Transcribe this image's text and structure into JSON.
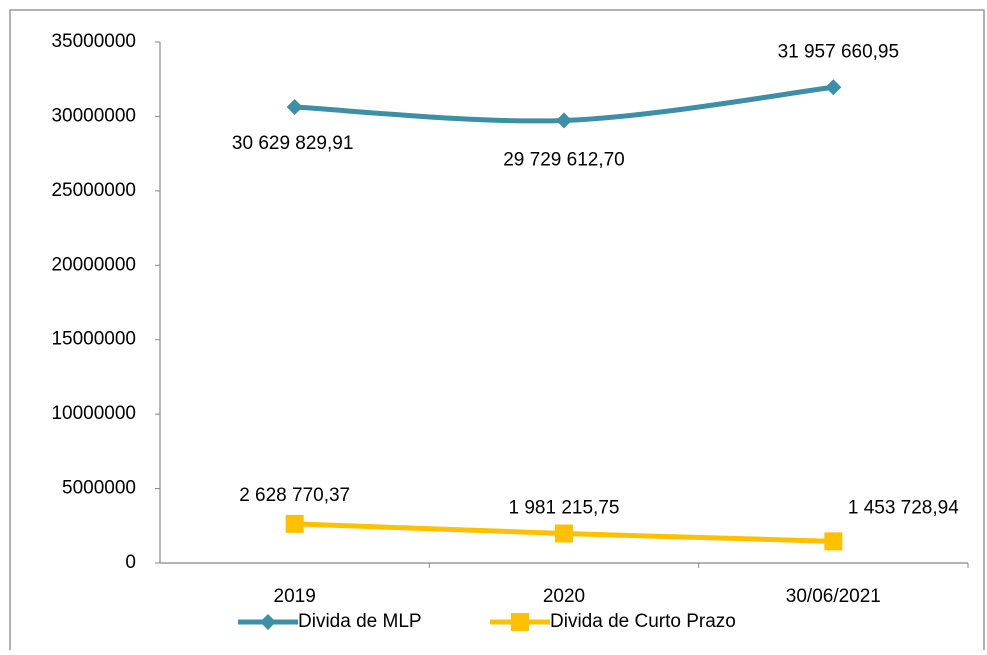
{
  "chart_data": {
    "type": "line",
    "categories": [
      "2019",
      "2020",
      "30/06/2021"
    ],
    "series": [
      {
        "name": "Divida de MLP",
        "color": "#3c8fa6",
        "marker": "diamond",
        "smooth": true,
        "values": [
          30629829.91,
          29729612.7,
          31957660.95
        ],
        "value_labels": [
          "30 629 829,91",
          "29 729 612,70",
          "31 957 660,95"
        ]
      },
      {
        "name": "Divida de Curto Prazo",
        "color": "#ffc000",
        "marker": "square",
        "smooth": false,
        "values": [
          2628770.37,
          1981215.75,
          1453728.94
        ],
        "value_labels": [
          "2 628 770,37",
          "1 981 215,75",
          "1 453 728,94"
        ]
      }
    ],
    "ylim": [
      0,
      35000000
    ],
    "yticks": [
      0,
      5000000,
      10000000,
      15000000,
      20000000,
      25000000,
      30000000,
      35000000
    ],
    "grid": false,
    "legend": "bottom"
  }
}
